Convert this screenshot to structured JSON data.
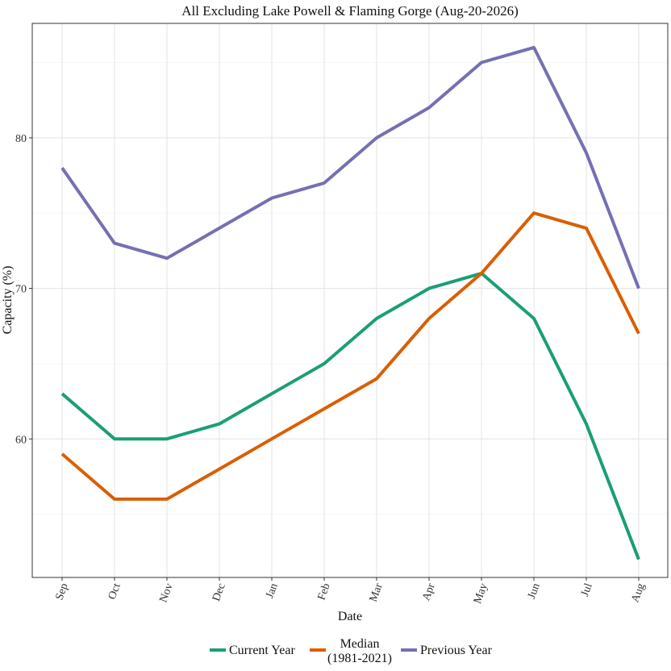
{
  "chart_data": {
    "type": "line",
    "title": "All Excluding Lake Powell & Flaming Gorge (Aug-20-2026)",
    "xlabel": "Date",
    "ylabel": "Capacity (%)",
    "categories": [
      "Sep",
      "Oct",
      "Nov",
      "Dec",
      "Jan",
      "Feb",
      "Mar",
      "Apr",
      "May",
      "Jun",
      "Jul",
      "Aug"
    ],
    "ylim": [
      50.8,
      87.6
    ],
    "yticks": [
      60,
      70,
      80
    ],
    "ytick_labels": [
      "60",
      "70",
      "80"
    ],
    "grid": true,
    "legend_position": "bottom",
    "series": [
      {
        "name": "Current Year",
        "color": "#1b9e77",
        "values": [
          63,
          60,
          60,
          61,
          63,
          65,
          68,
          70,
          71,
          68,
          61,
          52
        ]
      },
      {
        "name": "Median",
        "name_line2": "(1981-2021)",
        "color": "#d95f02",
        "values": [
          59,
          56,
          56,
          58,
          60,
          62,
          64,
          68,
          71,
          75,
          74,
          67
        ]
      },
      {
        "name": "Previous Year",
        "color": "#7570b3",
        "values": [
          78,
          73,
          72,
          74,
          76,
          77,
          80,
          82,
          85,
          86,
          79,
          70
        ]
      }
    ]
  }
}
